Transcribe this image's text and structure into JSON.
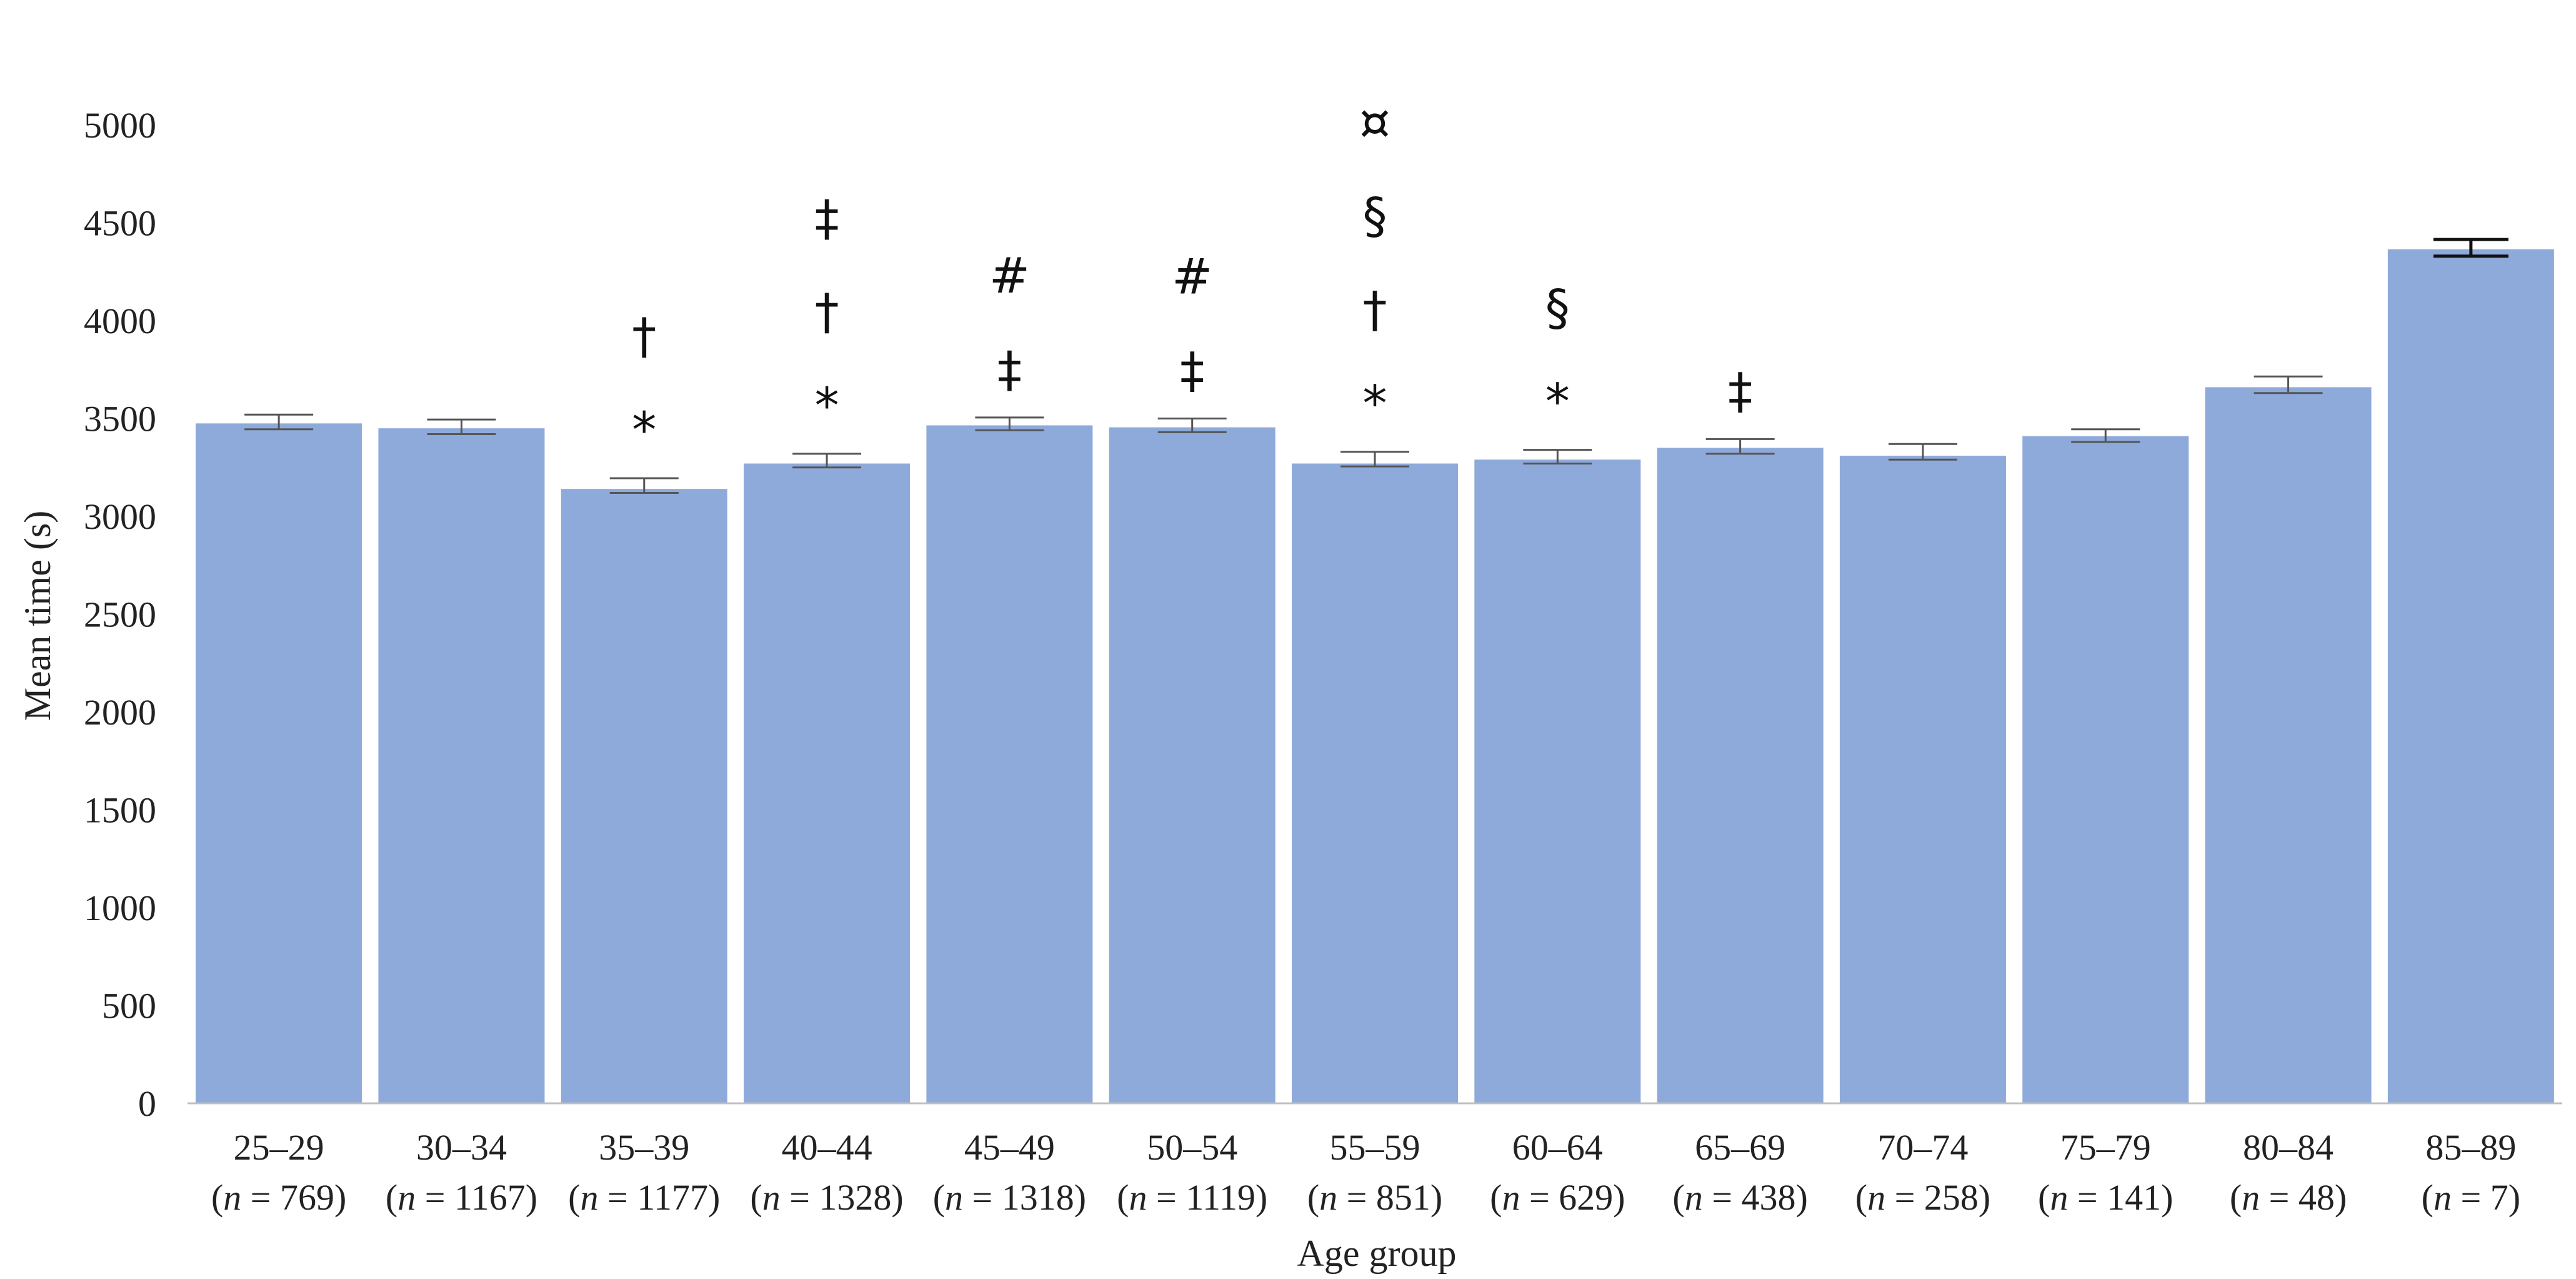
{
  "chart_data": {
    "type": "bar",
    "xlabel": "Age group",
    "ylabel": "Mean time (s)",
    "ylim": [
      0,
      5000
    ],
    "yticks": [
      0,
      500,
      1000,
      1500,
      2000,
      2500,
      3000,
      3500,
      4000,
      4500,
      5000
    ],
    "bar_color": "#8eaadb",
    "grid": false,
    "legend": "none",
    "categories": [
      {
        "label": "25–29",
        "n": "769"
      },
      {
        "label": "30–34",
        "n": "1167"
      },
      {
        "label": "35–39",
        "n": "1177"
      },
      {
        "label": "40–44",
        "n": "1328"
      },
      {
        "label": "45–49",
        "n": "1318"
      },
      {
        "label": "50–54",
        "n": "1119"
      },
      {
        "label": "55–59",
        "n": "851"
      },
      {
        "label": "60–64",
        "n": "629"
      },
      {
        "label": "65–69",
        "n": "438"
      },
      {
        "label": "70–74",
        "n": "258"
      },
      {
        "label": "75–79",
        "n": "141"
      },
      {
        "label": "80–84",
        "n": "48"
      },
      {
        "label": "85–89",
        "n": "7"
      }
    ],
    "values": [
      3475,
      3450,
      3140,
      3270,
      3465,
      3455,
      3270,
      3290,
      3350,
      3310,
      3410,
      3660,
      4365
    ],
    "error_low": [
      3445,
      3420,
      3120,
      3250,
      3440,
      3430,
      3255,
      3270,
      3320,
      3290,
      3380,
      3630,
      4330
    ],
    "error_high": [
      3520,
      3495,
      3195,
      3320,
      3505,
      3500,
      3330,
      3340,
      3395,
      3370,
      3445,
      3715,
      4415
    ],
    "annotations": [
      [],
      [],
      [
        "*",
        "†"
      ],
      [
        "*",
        "†",
        "‡"
      ],
      [
        "‡",
        "#"
      ],
      [
        "‡",
        "#"
      ],
      [
        "*",
        "†",
        "§",
        "¤"
      ],
      [
        "*",
        "§"
      ],
      [
        "‡"
      ],
      [],
      [],
      [],
      []
    ]
  }
}
